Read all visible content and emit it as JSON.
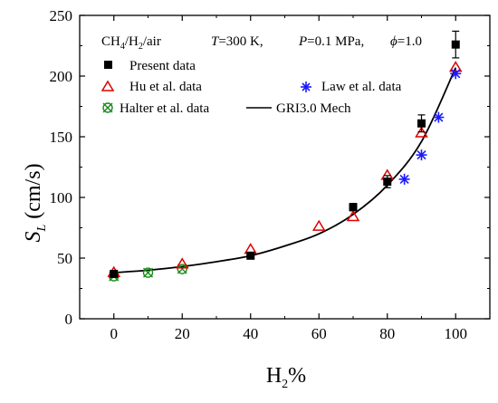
{
  "chart_data": {
    "type": "scatter",
    "xlabel": "H2%",
    "ylabel": "SL (cm/s)",
    "xlim": [
      -10,
      110
    ],
    "ylim": [
      0,
      250
    ],
    "xticks": [
      0,
      20,
      40,
      60,
      80,
      100
    ],
    "yticks": [
      0,
      50,
      100,
      150,
      200,
      250
    ],
    "grid": false,
    "legend_position": "top-left",
    "conditions": {
      "mixture": "CH4/H2/air",
      "mixture_parts": {
        "a": "CH",
        "a_sub": "4",
        "b": "/H",
        "b_sub": "2",
        "c": "/air"
      },
      "temperature": {
        "symbol": "T",
        "value": "=300 K,"
      },
      "pressure": {
        "symbol": "P",
        "value": "=0.1 MPa,"
      },
      "equivalence": {
        "symbol": "ϕ",
        "value": "=1.0"
      }
    },
    "axis_text": {
      "ylabel_main": "S",
      "ylabel_sub": "L",
      "ylabel_units": " (cm/s)",
      "xlabel_main": "H",
      "xlabel_sub": "2",
      "xlabel_suffix": "%"
    },
    "series": [
      {
        "name": "Present data",
        "marker": "filled-square",
        "color": "#000000",
        "points": [
          {
            "x": 0,
            "y": 37,
            "err": 2
          },
          {
            "x": 40,
            "y": 52,
            "err": 2
          },
          {
            "x": 70,
            "y": 92,
            "err": 3
          },
          {
            "x": 80,
            "y": 113,
            "err": 5
          },
          {
            "x": 90,
            "y": 161,
            "err": 7
          },
          {
            "x": 100,
            "y": 226,
            "err": 11
          }
        ]
      },
      {
        "name": "Hu et al. data",
        "marker": "open-triangle",
        "color": "#e00000",
        "points": [
          {
            "x": 0,
            "y": 38
          },
          {
            "x": 20,
            "y": 45
          },
          {
            "x": 40,
            "y": 57
          },
          {
            "x": 60,
            "y": 76
          },
          {
            "x": 70,
            "y": 84
          },
          {
            "x": 80,
            "y": 118
          },
          {
            "x": 90,
            "y": 153
          },
          {
            "x": 100,
            "y": 207
          }
        ]
      },
      {
        "name": "Law et al. data",
        "marker": "asterisk",
        "color": "#1a1aff",
        "points": [
          {
            "x": 85,
            "y": 115
          },
          {
            "x": 90,
            "y": 135
          },
          {
            "x": 95,
            "y": 166
          },
          {
            "x": 100,
            "y": 202
          }
        ]
      },
      {
        "name": "Halter et al. data",
        "marker": "crossed-circle",
        "color": "#1a8a1a",
        "points": [
          {
            "x": 0,
            "y": 35
          },
          {
            "x": 10,
            "y": 38
          },
          {
            "x": 20,
            "y": 41
          }
        ]
      },
      {
        "name": "GRI3.0 Mech",
        "marker": "line",
        "color": "#000000",
        "points": [
          {
            "x": 0,
            "y": 38
          },
          {
            "x": 10,
            "y": 40
          },
          {
            "x": 20,
            "y": 43
          },
          {
            "x": 30,
            "y": 47
          },
          {
            "x": 40,
            "y": 52
          },
          {
            "x": 50,
            "y": 60
          },
          {
            "x": 60,
            "y": 70
          },
          {
            "x": 70,
            "y": 86
          },
          {
            "x": 80,
            "y": 110
          },
          {
            "x": 90,
            "y": 146
          },
          {
            "x": 100,
            "y": 207
          }
        ]
      }
    ]
  }
}
